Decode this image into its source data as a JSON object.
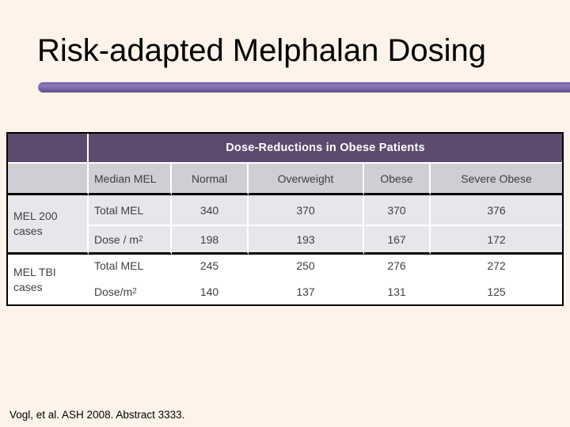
{
  "slide": {
    "title": "Risk-adapted Melphalan Dosing",
    "citation": "Vogl, et al. ASH 2008. Abstract 3333."
  },
  "colors": {
    "background": "#fdf3ea",
    "accent_bar_purple": "#7b6aa9",
    "banner_background": "#5d4a6e",
    "banner_text": "#ffffff",
    "header_row_background": "#d0cdd5",
    "group_mel200_background": "#e7e6ea",
    "group_meltbi_background": "#ffffff",
    "table_border": "#000000",
    "table_text": "#3f3f3f"
  },
  "table": {
    "banner": "Dose-Reductions in Obese Patients",
    "column_headers": [
      "Median MEL",
      "Normal",
      "Overweight",
      "Obese",
      "Severe Obese"
    ],
    "groups": [
      {
        "label": "MEL 200 cases",
        "rows": [
          {
            "metric": "Total MEL",
            "values": [
              "340",
              "370",
              "370",
              "376"
            ]
          },
          {
            "metric": "Dose / m",
            "metric_sup": "2",
            "values": [
              "198",
              "193",
              "167",
              "172"
            ]
          }
        ]
      },
      {
        "label": "MEL TBI cases",
        "rows": [
          {
            "metric": "Total MEL",
            "values": [
              "245",
              "250",
              "276",
              "272"
            ]
          },
          {
            "metric": "Dose/m",
            "metric_sup": "2",
            "values": [
              "140",
              "137",
              "131",
              "125"
            ]
          }
        ]
      }
    ]
  }
}
